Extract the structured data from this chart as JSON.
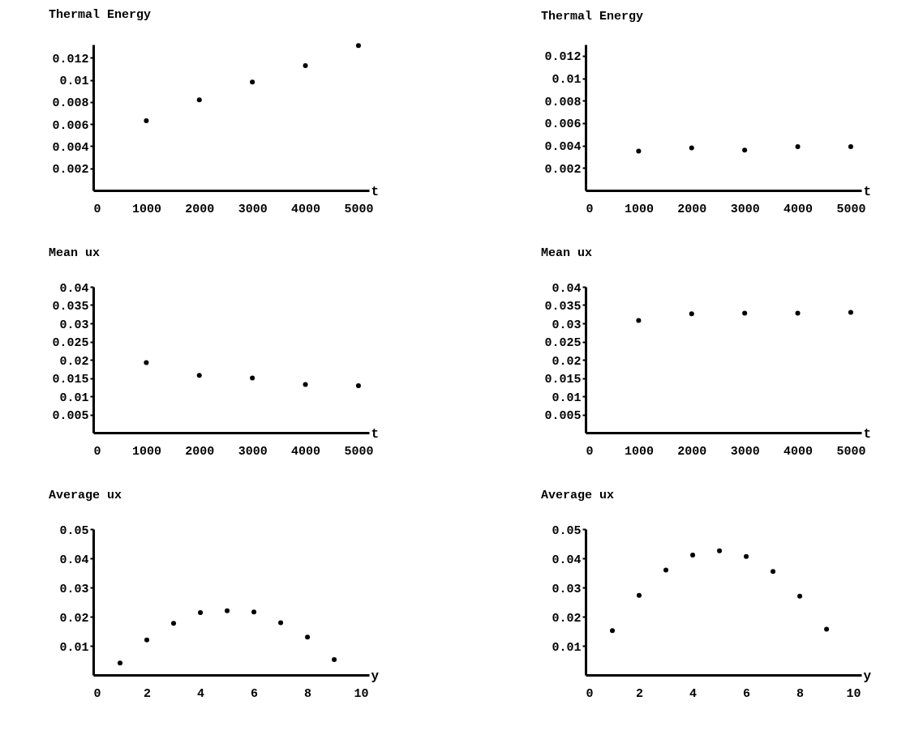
{
  "chart_data": [
    {
      "type": "scatter",
      "title": "Thermal Energy",
      "xlabel": "t",
      "x": [
        1000,
        2000,
        3000,
        4000,
        5000
      ],
      "values": [
        0.0063,
        0.0082,
        0.0098,
        0.0113,
        0.0131
      ],
      "color": "#000000",
      "marker": "circle",
      "xlim": [
        0,
        5200
      ],
      "xticks": [
        0,
        1000,
        2000,
        3000,
        4000,
        5000
      ],
      "ylim": [
        0,
        0.0132
      ],
      "yticks": [
        0.002,
        0.004,
        0.006,
        0.008,
        0.01,
        0.012
      ]
    },
    {
      "type": "scatter",
      "title": "Thermal Energy",
      "xlabel": "t",
      "x": [
        1000,
        2000,
        3000,
        4000,
        5000
      ],
      "values": [
        0.0035,
        0.0038,
        0.0036,
        0.0039,
        0.0039
      ],
      "color": "#000000",
      "marker": "circle",
      "xlim": [
        0,
        5200
      ],
      "xticks": [
        0,
        1000,
        2000,
        3000,
        4000,
        5000
      ],
      "ylim": [
        0,
        0.013
      ],
      "yticks": [
        0.002,
        0.004,
        0.006,
        0.008,
        0.01,
        0.012
      ]
    },
    {
      "type": "scatter",
      "title": "Mean ux",
      "xlabel": "t",
      "x": [
        1000,
        2000,
        3000,
        4000,
        5000
      ],
      "values": [
        0.0192,
        0.0157,
        0.015,
        0.0132,
        0.0129
      ],
      "color": "#000000",
      "marker": "circle",
      "xlim": [
        0,
        5200
      ],
      "xticks": [
        0,
        1000,
        2000,
        3000,
        4000,
        5000
      ],
      "ylim": [
        0,
        0.04
      ],
      "yticks": [
        0.005,
        0.01,
        0.015,
        0.02,
        0.025,
        0.03,
        0.035,
        0.04
      ]
    },
    {
      "type": "scatter",
      "title": "Mean ux",
      "xlabel": "t",
      "x": [
        1000,
        2000,
        3000,
        4000,
        5000
      ],
      "values": [
        0.0308,
        0.0326,
        0.0328,
        0.0328,
        0.033
      ],
      "color": "#000000",
      "marker": "circle",
      "xlim": [
        0,
        5200
      ],
      "xticks": [
        0,
        1000,
        2000,
        3000,
        4000,
        5000
      ],
      "ylim": [
        0,
        0.04
      ],
      "yticks": [
        0.005,
        0.01,
        0.015,
        0.02,
        0.025,
        0.03,
        0.035,
        0.04
      ]
    },
    {
      "type": "scatter",
      "title": "Average ux",
      "xlabel": "y",
      "x": [
        1,
        2,
        3,
        4,
        5,
        6,
        7,
        8,
        9
      ],
      "values": [
        0.0041,
        0.012,
        0.0177,
        0.0214,
        0.022,
        0.0216,
        0.0179,
        0.013,
        0.0053
      ],
      "color": "#000000",
      "marker": "circle",
      "xlim": [
        0,
        10.3
      ],
      "xticks": [
        0,
        2,
        4,
        6,
        8,
        10
      ],
      "ylim": [
        0,
        0.05
      ],
      "yticks": [
        0.01,
        0.02,
        0.03,
        0.04,
        0.05
      ]
    },
    {
      "type": "scatter",
      "title": "Average ux",
      "xlabel": "y",
      "x": [
        1,
        2,
        3,
        4,
        5,
        6,
        7,
        8,
        9
      ],
      "values": [
        0.0152,
        0.0273,
        0.036,
        0.0411,
        0.0426,
        0.0406,
        0.0355,
        0.027,
        0.0157
      ],
      "color": "#000000",
      "marker": "circle",
      "xlim": [
        0,
        10.3
      ],
      "xticks": [
        0,
        2,
        4,
        6,
        8,
        10
      ],
      "ylim": [
        0,
        0.05
      ],
      "yticks": [
        0.01,
        0.02,
        0.03,
        0.04,
        0.05
      ]
    }
  ]
}
